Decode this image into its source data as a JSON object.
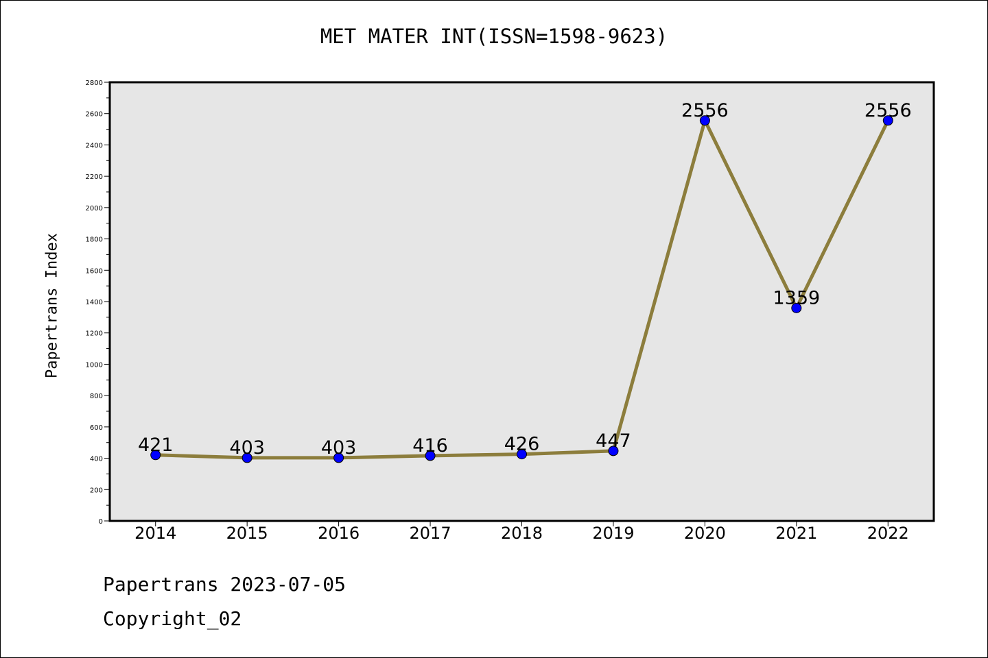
{
  "title": "MET MATER INT(ISSN=1598-9623)",
  "footer": {
    "line1": "Papertrans 2023-07-05",
    "line2": "Copyright_02"
  },
  "chart_data": {
    "type": "line",
    "title": "MET MATER INT(ISSN=1598-9623)",
    "xlabel": "",
    "ylabel": "Papertrans Index",
    "categories": [
      "2014",
      "2015",
      "2016",
      "2017",
      "2018",
      "2019",
      "2020",
      "2021",
      "2022"
    ],
    "series": [
      {
        "values": [
          421,
          403,
          403,
          416,
          426,
          447,
          2556,
          1359,
          2556
        ]
      }
    ],
    "ylim": [
      0,
      2800
    ],
    "yticks": [
      0,
      200,
      400,
      600,
      800,
      1000,
      1200,
      1400,
      1600,
      1800,
      2000,
      2200,
      2400,
      2600,
      2800
    ],
    "grid": false,
    "legend": "none",
    "colors": {
      "line": "#8c7d3c",
      "marker": "#0000ff",
      "plot_background": "#e6e6e6"
    }
  }
}
